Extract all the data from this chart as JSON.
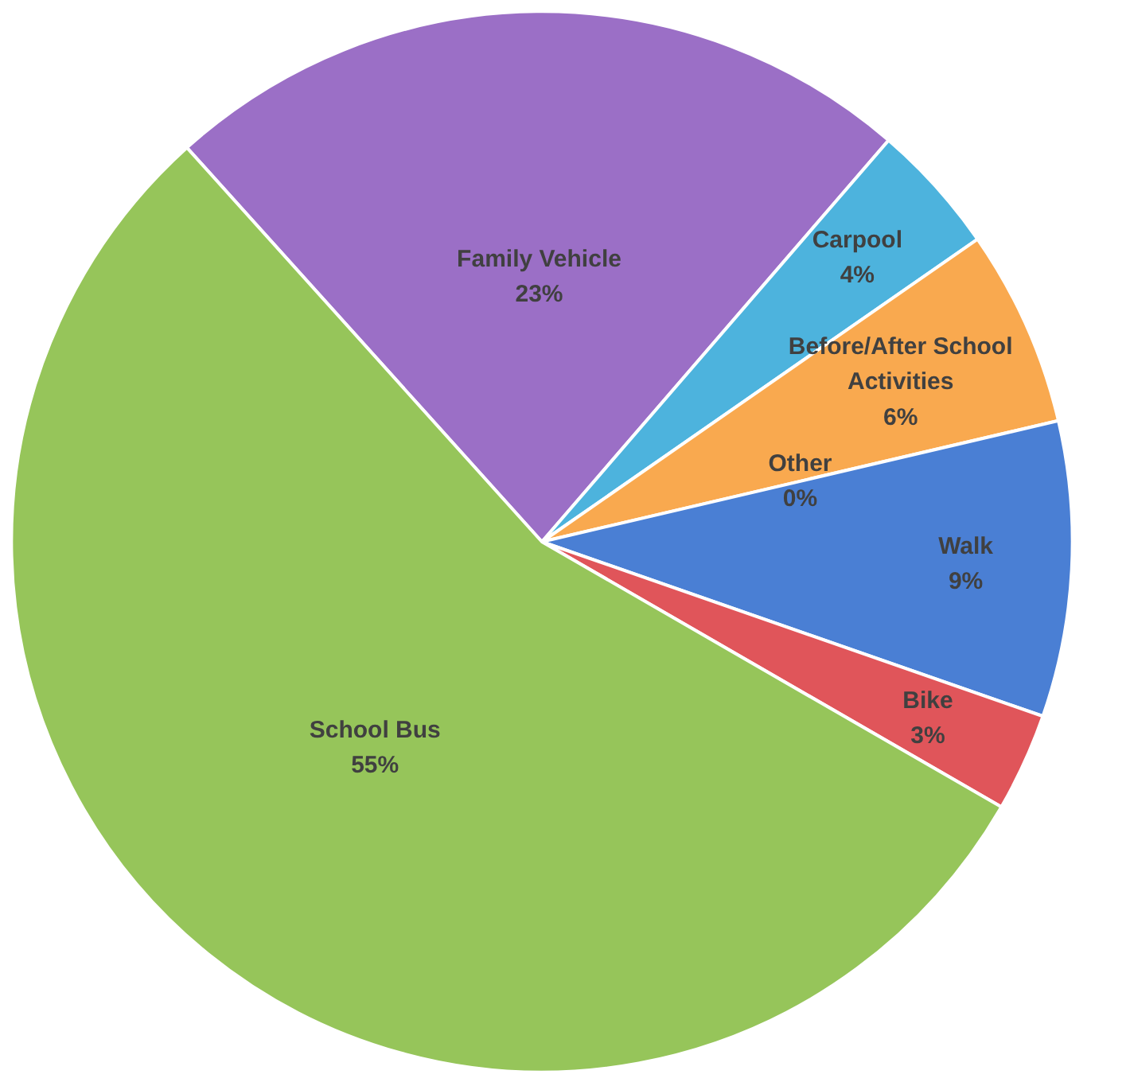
{
  "chart_data": {
    "type": "pie",
    "categories": [
      "Family Vehicle",
      "Carpool",
      "Before/After School Activities",
      "Other",
      "Walk",
      "Bike",
      "School Bus"
    ],
    "values": [
      23,
      4,
      6,
      0,
      9,
      3,
      55
    ],
    "value_labels": [
      "23%",
      "4%",
      "6%",
      "0%",
      "9%",
      "3%",
      "55%"
    ],
    "colors": [
      "#9b6fc6",
      "#4db3dd",
      "#f9a94f",
      "#a5a5a5",
      "#4a7fd4",
      "#e0555a",
      "#96c55a"
    ]
  }
}
